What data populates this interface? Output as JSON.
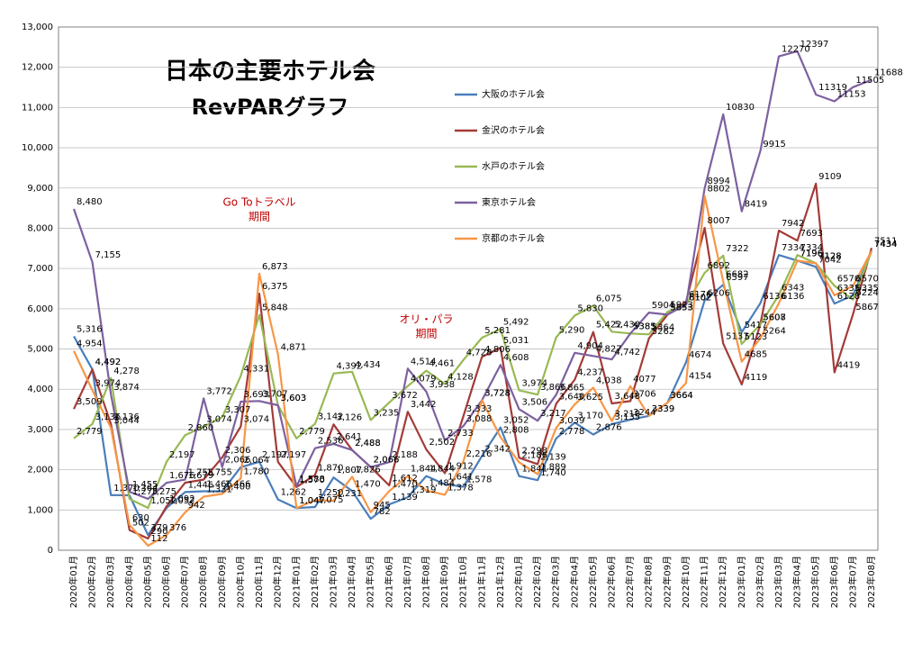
{
  "chart_data": {
    "type": "line",
    "title": "日本の主要ホテル会",
    "subtitle": "RevPARグラフ",
    "annotations": [
      {
        "lines": [
          "Go Toトラベル",
          "期間"
        ],
        "at": 10
      },
      {
        "lines": [
          "オリ・パラ",
          "期間"
        ],
        "at": 19
      }
    ],
    "categories": [
      "2020年01月",
      "2020年02月",
      "2020年03月",
      "2020年04月",
      "2020年05月",
      "2020年06月",
      "2020年07月",
      "2020年08月",
      "2020年09月",
      "2020年10月",
      "2020年11月",
      "2020年12月",
      "2021年01月",
      "2021年02月",
      "2021年03月",
      "2021年04月",
      "2021年05月",
      "2021年06月",
      "2021年07月",
      "2021年08月",
      "2021年09月",
      "2021年10月",
      "2021年11月",
      "2021年12月",
      "2022年01月",
      "2022年02月",
      "2022年03月",
      "2022年04月",
      "2022年05月",
      "2022年06月",
      "2022年07月",
      "2022年08月",
      "2022年09月",
      "2022年10月",
      "2022年11月",
      "2022年12月",
      "2023年01月",
      "2023年02月",
      "2023年03月",
      "2023年04月",
      "2023年05月",
      "2023年06月",
      "2023年07月",
      "2023年08月"
    ],
    "ylim": [
      0,
      13000
    ],
    "yticks": [
      0,
      {
        "value": 1000,
        "label": "1,000"
      },
      {
        "value": 2000,
        "label": "2,000"
      },
      {
        "value": 3000,
        "label": "3,000"
      },
      {
        "value": 4000,
        "label": "4,000"
      },
      {
        "value": 5000,
        "label": "5,000"
      },
      {
        "value": 6000,
        "label": "6,000"
      },
      {
        "value": 7000,
        "label": "7,000"
      },
      {
        "value": 8000,
        "label": "8,000"
      },
      {
        "value": 9000,
        "label": "9,000"
      },
      {
        "value": 10000,
        "label": "10,000"
      },
      {
        "value": 11000,
        "label": "11,000"
      },
      {
        "value": 12000,
        "label": "12,000"
      },
      {
        "value": 13000,
        "label": "13,000"
      }
    ],
    "grid": true,
    "series": [
      {
        "name": "大阪のホテル会",
        "color": "#4a7ebb",
        "values": [
          5316,
          4492,
          1370,
          1364,
          379,
          1052,
          1446,
          1466,
          1466,
          2064,
          2197,
          1262,
          1047,
          1075,
          1807,
          1470,
          782,
          1139,
          1319,
          1844,
          1641,
          1578,
          2342,
          3052,
          1841,
          1740,
          2778,
          3170,
          2876,
          3135,
          3244,
          3339,
          3664,
          4674,
          6206,
          6597,
          5417,
          6136,
          7334,
          7196,
          7042,
          6128,
          6335,
          7434
        ],
        "value_labels": [
          "5,316",
          "4,492",
          "1,370",
          "1,364",
          "379",
          "1,052",
          "1,446",
          "1,466",
          "1,466",
          "2,064",
          "2,197",
          "1,262",
          "1,047",
          "1,075",
          "1,807",
          "1,470",
          "782",
          "1,139",
          "1,319",
          "1,844",
          "1,641",
          "1,578",
          "2,342",
          "3,052",
          "1,841",
          "1,740",
          "2,778",
          "3,170",
          "2,876",
          "3,135",
          "3244",
          "3339",
          "3664",
          "4674",
          "6206",
          "6597",
          "5417",
          "6136",
          "7334",
          "7196",
          "7042",
          "6128",
          "6335",
          "7434"
        ]
      },
      {
        "name": "金沢のホテル会",
        "color": "#a33b38",
        "values": [
          3509,
          4492,
          3136,
          502,
          290,
          1092,
          1679,
          1755,
          2306,
          3074,
          6375,
          2197,
          1570,
          1870,
          3126,
          2488,
          2066,
          1612,
          3442,
          2502,
          1912,
          3333,
          4806,
          5031,
          2298,
          2139,
          3640,
          4237,
          5422,
          3648,
          3706,
          5262,
          5853,
          6176,
          8007,
          5137,
          4119,
          5607,
          7942,
          7693,
          9109,
          4419,
          5867,
          7511
        ],
        "value_labels": [
          "3,509",
          "4,492",
          "3,136",
          "502",
          "290",
          "1,092",
          "1,679",
          "1,755",
          "2,306",
          "3,074",
          "6,375",
          "2,197",
          "1,570",
          "1,870",
          "3,126",
          "2,488",
          "2,066",
          "1,612",
          "3,442",
          "2,502",
          "1,912",
          "3,333",
          "4,806",
          "5,031",
          "2,298",
          "2,139",
          "3,640",
          "4,237",
          "5,422",
          "3,648",
          "3706",
          "5262",
          "5853",
          "6176",
          "8007",
          "5137",
          "4119",
          "5607",
          "7942",
          "7693",
          "9109",
          "4419",
          "5867",
          "7511"
        ]
      },
      {
        "name": "水戸のホテル会",
        "color": "#98b954",
        "values": [
          2779,
          3136,
          4278,
          1275,
          1052,
          2197,
          2860,
          3074,
          3307,
          4331,
          5848,
          3603,
          2779,
          3142,
          4392,
          4434,
          3235,
          3672,
          4079,
          4461,
          4128,
          4728,
          5281,
          5492,
          3974,
          3866,
          5290,
          5830,
          6075,
          5430,
          5385,
          5364,
          5923,
          6102,
          6892,
          7322,
          5123,
          5608,
          6343,
          7334,
          7128,
          6570,
          6224,
          7434
        ],
        "value_labels": [
          "2,779",
          "3,136",
          "4,278",
          "1,275",
          "1,052",
          "2,197",
          "2,860",
          "3,074",
          "3,307",
          "4,331",
          "5,848",
          "3,603",
          "2,779",
          "3,142",
          "4,392",
          "4,434",
          "3,235",
          "3,672",
          "4,079",
          "4,461",
          "4,128",
          "4,728",
          "5,281",
          "5,492",
          "3,974",
          "3,866",
          "5,290",
          "5,830",
          "6,075",
          "5,430",
          "5385",
          "5364",
          "5923",
          "6102",
          "6892",
          "7322",
          "5123",
          "5608",
          "6343",
          "7334",
          "7128",
          "6570",
          "6224",
          "7434"
        ]
      },
      {
        "name": "東京ホテル会",
        "color": "#7d60a0",
        "values": [
          8480,
          7155,
          3874,
          1455,
          1275,
          1676,
          1755,
          3772,
          2066,
          3693,
          3707,
          3603,
          1588,
          2536,
          2641,
          2488,
          2066,
          2188,
          4514,
          3938,
          2733,
          3088,
          3728,
          4608,
          3506,
          3217,
          3865,
          4904,
          4827,
          4742,
          5385,
          5904,
          5853,
          6102,
          8994,
          10830,
          8419,
          9915,
          12270,
          12397,
          11319,
          11153,
          11505,
          11688
        ],
        "value_labels": [
          "8,480",
          "7,155",
          "3,874",
          "1,455",
          "1,275",
          "1,676",
          "1,755",
          "3,772",
          "2,066",
          "3,693",
          "3,707",
          "3,603",
          "1,588",
          "2,536",
          "2,641",
          "2,488",
          "2,066",
          "2,188",
          "4,514",
          "3,938",
          "2,733",
          "3,088",
          "3,728",
          "4,608",
          "3,506",
          "3,217",
          "3,865",
          "4,904",
          "4,827",
          "4,742",
          "5385",
          "5904",
          "5853",
          "6102",
          "8994",
          "10830",
          "8419",
          "9915",
          "12270",
          "12397",
          "11319",
          "11153",
          "11505",
          "11688"
        ]
      },
      {
        "name": "京都のホテル会",
        "color": "#f79646",
        "values": [
          4954,
          3974,
          3044,
          630,
          112,
          376,
          942,
          1331,
          1400,
          1780,
          6873,
          4871,
          1047,
          1250,
          1231,
          1826,
          945,
          1470,
          1844,
          1484,
          1378,
          2216,
          3728,
          2808,
          2186,
          1889,
          3039,
          3625,
          4038,
          3210,
          4077,
          3339,
          3664,
          4154,
          8802,
          6682,
          4685,
          5264,
          6136,
          7196,
          7128,
          6335,
          6570,
          7434
        ],
        "value_labels": [
          "4,954",
          "3,974",
          "3,044",
          "630",
          "112",
          "376",
          "942",
          "1,331",
          "1,400",
          "1,780",
          "6,873",
          "4,871",
          "1,047",
          "1,250",
          "1,231",
          "1,826",
          "945",
          "1,470",
          "1,844",
          "1,484",
          "1,378",
          "2,216",
          "3,728",
          "2,808",
          "2,186",
          "1,889",
          "3,039",
          "3,625",
          "4,038",
          "3,210",
          "4077",
          "3339",
          "3664",
          "4154",
          "8802",
          "6682",
          "4685",
          "5264",
          "6136",
          "7196",
          "7128",
          "6335",
          "6570",
          "7434"
        ]
      }
    ]
  }
}
